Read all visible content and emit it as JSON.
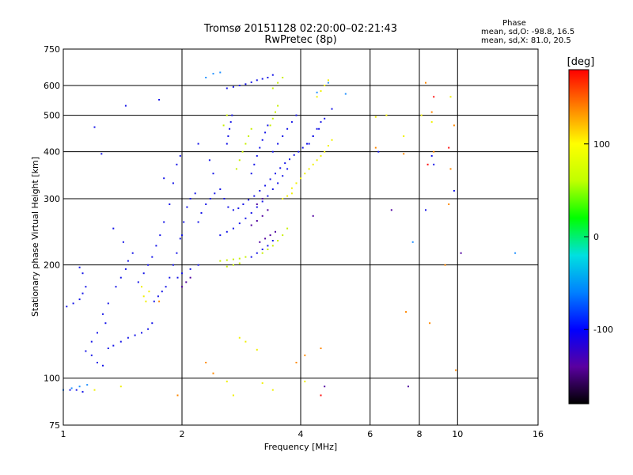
{
  "chart_data": {
    "type": "scatter",
    "title": "Tromsø 20151128 02:20:00–02:21:43",
    "subtitle": "RwPretec (8p)",
    "xlabel": "Frequency [MHz]",
    "ylabel": "Stationary phase Virtual Height [km]",
    "x_scale": "log",
    "y_scale": "log",
    "xlim": [
      1,
      16
    ],
    "ylim": [
      75,
      750
    ],
    "x_ticks": [
      1,
      2,
      4,
      6,
      8,
      10,
      16
    ],
    "y_ticks": [
      75,
      100,
      200,
      300,
      400,
      500,
      600,
      750
    ],
    "grid": true,
    "phase_stats": {
      "title": "Phase",
      "o_line": "mean, sd,O: -98.8, 16.5",
      "x_line": "mean, sd,X:  81.0, 20.5"
    },
    "colorbar": {
      "label": "[deg]",
      "ticks": [
        "100",
        "0",
        "-100"
      ],
      "tick_values": [
        100,
        0,
        -100
      ],
      "range": [
        -180,
        180
      ],
      "colors": [
        "#000000",
        "#5a00a0",
        "#0000ff",
        "#0080ff",
        "#00e0e0",
        "#00ff00",
        "#c0ff00",
        "#ffff00",
        "#ff8000",
        "#ff0000"
      ]
    },
    "series": [
      {
        "phase": -100,
        "color": "#1515e8",
        "points": [
          [
            1.0,
            93
          ],
          [
            1.04,
            93
          ],
          [
            1.08,
            93
          ],
          [
            1.12,
            92
          ],
          [
            1.02,
            155
          ],
          [
            1.06,
            158
          ],
          [
            1.1,
            162
          ],
          [
            1.12,
            168
          ],
          [
            1.14,
            175
          ],
          [
            1.12,
            190
          ],
          [
            1.1,
            197
          ],
          [
            1.14,
            118
          ],
          [
            1.18,
            125
          ],
          [
            1.22,
            132
          ],
          [
            1.28,
            140
          ],
          [
            1.26,
            148
          ],
          [
            1.3,
            158
          ],
          [
            1.3,
            120
          ],
          [
            1.34,
            122
          ],
          [
            1.4,
            125
          ],
          [
            1.46,
            128
          ],
          [
            1.52,
            130
          ],
          [
            1.58,
            132
          ],
          [
            1.64,
            135
          ],
          [
            1.68,
            140
          ],
          [
            1.36,
            175
          ],
          [
            1.4,
            185
          ],
          [
            1.44,
            195
          ],
          [
            1.46,
            205
          ],
          [
            1.5,
            215
          ],
          [
            1.42,
            230
          ],
          [
            1.34,
            250
          ],
          [
            1.55,
            180
          ],
          [
            1.6,
            190
          ],
          [
            1.64,
            200
          ],
          [
            1.68,
            210
          ],
          [
            1.72,
            225
          ],
          [
            1.76,
            240
          ],
          [
            1.8,
            260
          ],
          [
            1.86,
            290
          ],
          [
            1.9,
            330
          ],
          [
            1.94,
            370
          ],
          [
            1.98,
            390
          ],
          [
            1.7,
            160
          ],
          [
            1.74,
            165
          ],
          [
            1.78,
            170
          ],
          [
            1.82,
            175
          ],
          [
            1.86,
            185
          ],
          [
            1.9,
            200
          ],
          [
            1.94,
            215
          ],
          [
            1.98,
            235
          ],
          [
            2.02,
            260
          ],
          [
            2.06,
            285
          ],
          [
            2.1,
            300
          ],
          [
            2.16,
            310
          ],
          [
            2.2,
            260
          ],
          [
            2.24,
            275
          ],
          [
            2.3,
            290
          ],
          [
            2.36,
            300
          ],
          [
            2.42,
            310
          ],
          [
            2.5,
            318
          ],
          [
            2.56,
            300
          ],
          [
            2.62,
            285
          ],
          [
            2.7,
            280
          ],
          [
            2.78,
            283
          ],
          [
            2.86,
            290
          ],
          [
            2.95,
            298
          ],
          [
            3.05,
            305
          ],
          [
            3.15,
            315
          ],
          [
            3.25,
            325
          ],
          [
            3.35,
            338
          ],
          [
            3.45,
            350
          ],
          [
            3.55,
            362
          ],
          [
            3.65,
            373
          ],
          [
            3.75,
            382
          ],
          [
            3.85,
            392
          ],
          [
            3.95,
            400
          ],
          [
            4.05,
            410
          ],
          [
            4.15,
            420
          ],
          [
            4.3,
            440
          ],
          [
            4.45,
            460
          ],
          [
            4.6,
            490
          ],
          [
            4.8,
            520
          ],
          [
            2.5,
            240
          ],
          [
            2.6,
            245
          ],
          [
            2.7,
            250
          ],
          [
            2.8,
            258
          ],
          [
            2.9,
            266
          ],
          [
            3.0,
            275
          ],
          [
            3.1,
            285
          ],
          [
            3.2,
            295
          ],
          [
            3.3,
            305
          ],
          [
            3.4,
            318
          ],
          [
            3.5,
            330
          ],
          [
            3.6,
            345
          ],
          [
            3.7,
            360
          ],
          [
            3.0,
            210
          ],
          [
            3.1,
            215
          ],
          [
            3.2,
            220
          ],
          [
            3.3,
            225
          ],
          [
            3.4,
            232
          ],
          [
            2.2,
            200
          ],
          [
            2.1,
            195
          ],
          [
            2.0,
            190
          ],
          [
            1.95,
            185
          ],
          [
            2.6,
            420
          ],
          [
            2.62,
            440
          ],
          [
            2.64,
            460
          ],
          [
            2.66,
            480
          ],
          [
            2.68,
            500
          ],
          [
            2.6,
            590
          ],
          [
            2.7,
            595
          ],
          [
            2.8,
            600
          ],
          [
            2.9,
            605
          ],
          [
            3.0,
            612
          ],
          [
            3.1,
            620
          ],
          [
            3.2,
            625
          ],
          [
            3.3,
            630
          ],
          [
            3.4,
            640
          ],
          [
            3.0,
            350
          ],
          [
            3.05,
            370
          ],
          [
            3.1,
            390
          ],
          [
            3.15,
            410
          ],
          [
            3.2,
            430
          ],
          [
            3.25,
            450
          ],
          [
            3.3,
            470
          ],
          [
            3.4,
            400
          ],
          [
            3.5,
            420
          ],
          [
            3.6,
            440
          ],
          [
            3.7,
            460
          ],
          [
            3.8,
            480
          ],
          [
            3.9,
            500
          ],
          [
            4.2,
            420
          ],
          [
            4.3,
            440
          ],
          [
            4.4,
            460
          ],
          [
            4.5,
            480
          ],
          [
            1.18,
            115
          ],
          [
            1.22,
            110
          ],
          [
            1.26,
            108
          ],
          [
            1.75,
            550
          ],
          [
            1.44,
            530
          ],
          [
            2.35,
            380
          ],
          [
            2.4,
            350
          ],
          [
            2.2,
            420
          ],
          [
            6.3,
            400
          ],
          [
            8.6,
            390
          ],
          [
            8.7,
            370
          ],
          [
            9.8,
            315
          ],
          [
            8.3,
            280
          ],
          [
            2.0,
            240
          ],
          [
            1.8,
            340
          ],
          [
            1.2,
            465
          ],
          [
            1.25,
            395
          ]
        ]
      },
      {
        "phase": -150,
        "color": "#5000a0",
        "points": [
          [
            3.0,
            255
          ],
          [
            3.1,
            262
          ],
          [
            3.2,
            270
          ],
          [
            3.3,
            280
          ],
          [
            3.1,
            290
          ],
          [
            3.2,
            300
          ],
          [
            3.15,
            230
          ],
          [
            3.25,
            235
          ],
          [
            3.35,
            240
          ],
          [
            3.45,
            245
          ],
          [
            2.0,
            175
          ],
          [
            2.05,
            180
          ],
          [
            2.1,
            185
          ],
          [
            4.3,
            270
          ],
          [
            4.6,
            95
          ],
          [
            7.5,
            95
          ],
          [
            10.2,
            215
          ],
          [
            6.8,
            280
          ]
        ]
      },
      {
        "phase": 90,
        "color": "#c8f000",
        "points": [
          [
            2.5,
            205
          ],
          [
            2.6,
            206
          ],
          [
            2.7,
            207
          ],
          [
            2.8,
            208
          ],
          [
            2.9,
            210
          ],
          [
            3.2,
            215
          ],
          [
            3.3,
            220
          ],
          [
            3.4,
            225
          ],
          [
            3.5,
            232
          ],
          [
            3.6,
            240
          ],
          [
            3.7,
            250
          ],
          [
            2.6,
            198
          ],
          [
            2.7,
            200
          ],
          [
            2.8,
            202
          ],
          [
            2.75,
            360
          ],
          [
            2.8,
            380
          ],
          [
            2.85,
            400
          ],
          [
            2.9,
            420
          ],
          [
            2.95,
            440
          ],
          [
            3.0,
            460
          ],
          [
            3.35,
            470
          ],
          [
            3.4,
            490
          ],
          [
            3.45,
            510
          ],
          [
            3.5,
            530
          ],
          [
            3.4,
            590
          ],
          [
            3.5,
            610
          ],
          [
            3.6,
            630
          ],
          [
            2.6,
            500
          ],
          [
            2.55,
            470
          ]
        ]
      },
      {
        "phase": 110,
        "color": "#f0f000",
        "points": [
          [
            3.8,
            320
          ],
          [
            3.9,
            330
          ],
          [
            4.0,
            340
          ],
          [
            4.1,
            350
          ],
          [
            4.2,
            360
          ],
          [
            4.3,
            370
          ],
          [
            4.4,
            380
          ],
          [
            4.5,
            390
          ],
          [
            4.6,
            400
          ],
          [
            4.7,
            415
          ],
          [
            4.8,
            430
          ],
          [
            3.6,
            300
          ],
          [
            3.7,
            305
          ],
          [
            3.8,
            310
          ],
          [
            1.2,
            93
          ],
          [
            1.4,
            95
          ],
          [
            2.6,
            98
          ],
          [
            2.7,
            90
          ],
          [
            3.2,
            97
          ],
          [
            3.4,
            93
          ],
          [
            4.1,
            98
          ],
          [
            4.4,
            560
          ],
          [
            4.5,
            580
          ],
          [
            4.6,
            600
          ],
          [
            4.7,
            620
          ],
          [
            2.9,
            125
          ],
          [
            2.8,
            128
          ],
          [
            3.1,
            119
          ],
          [
            6.2,
            495
          ],
          [
            6.6,
            500
          ],
          [
            7.3,
            440
          ],
          [
            8.1,
            500
          ],
          [
            8.6,
            480
          ],
          [
            9.6,
            560
          ],
          [
            1.6,
            165
          ],
          [
            1.65,
            170
          ],
          [
            1.58,
            175
          ],
          [
            1.62,
            160
          ]
        ]
      },
      {
        "phase": 140,
        "color": "#ff8800",
        "points": [
          [
            6.2,
            410
          ],
          [
            7.3,
            395
          ],
          [
            8.3,
            610
          ],
          [
            8.6,
            510
          ],
          [
            9.8,
            470
          ],
          [
            9.6,
            360
          ],
          [
            9.9,
            105
          ],
          [
            9.5,
            290
          ],
          [
            9.3,
            200
          ],
          [
            8.5,
            140
          ],
          [
            7.4,
            150
          ],
          [
            4.5,
            120
          ],
          [
            4.1,
            115
          ],
          [
            3.9,
            110
          ],
          [
            2.3,
            110
          ],
          [
            2.4,
            103
          ],
          [
            1.95,
            90
          ],
          [
            1.75,
            160
          ],
          [
            8.7,
            400
          ]
        ]
      },
      {
        "phase": -60,
        "color": "#2090ff",
        "points": [
          [
            1.0,
            93
          ],
          [
            1.05,
            94
          ],
          [
            1.1,
            95
          ],
          [
            1.15,
            96
          ],
          [
            2.3,
            630
          ],
          [
            2.4,
            645
          ],
          [
            2.5,
            650
          ],
          [
            4.7,
            610
          ],
          [
            5.2,
            570
          ],
          [
            14.0,
            215
          ],
          [
            7.7,
            230
          ],
          [
            4.4,
            575
          ]
        ]
      },
      {
        "phase": 180,
        "color": "#ff1010",
        "points": [
          [
            4.5,
            90
          ],
          [
            8.7,
            560
          ],
          [
            9.5,
            410
          ],
          [
            8.4,
            370
          ]
        ]
      }
    ]
  }
}
